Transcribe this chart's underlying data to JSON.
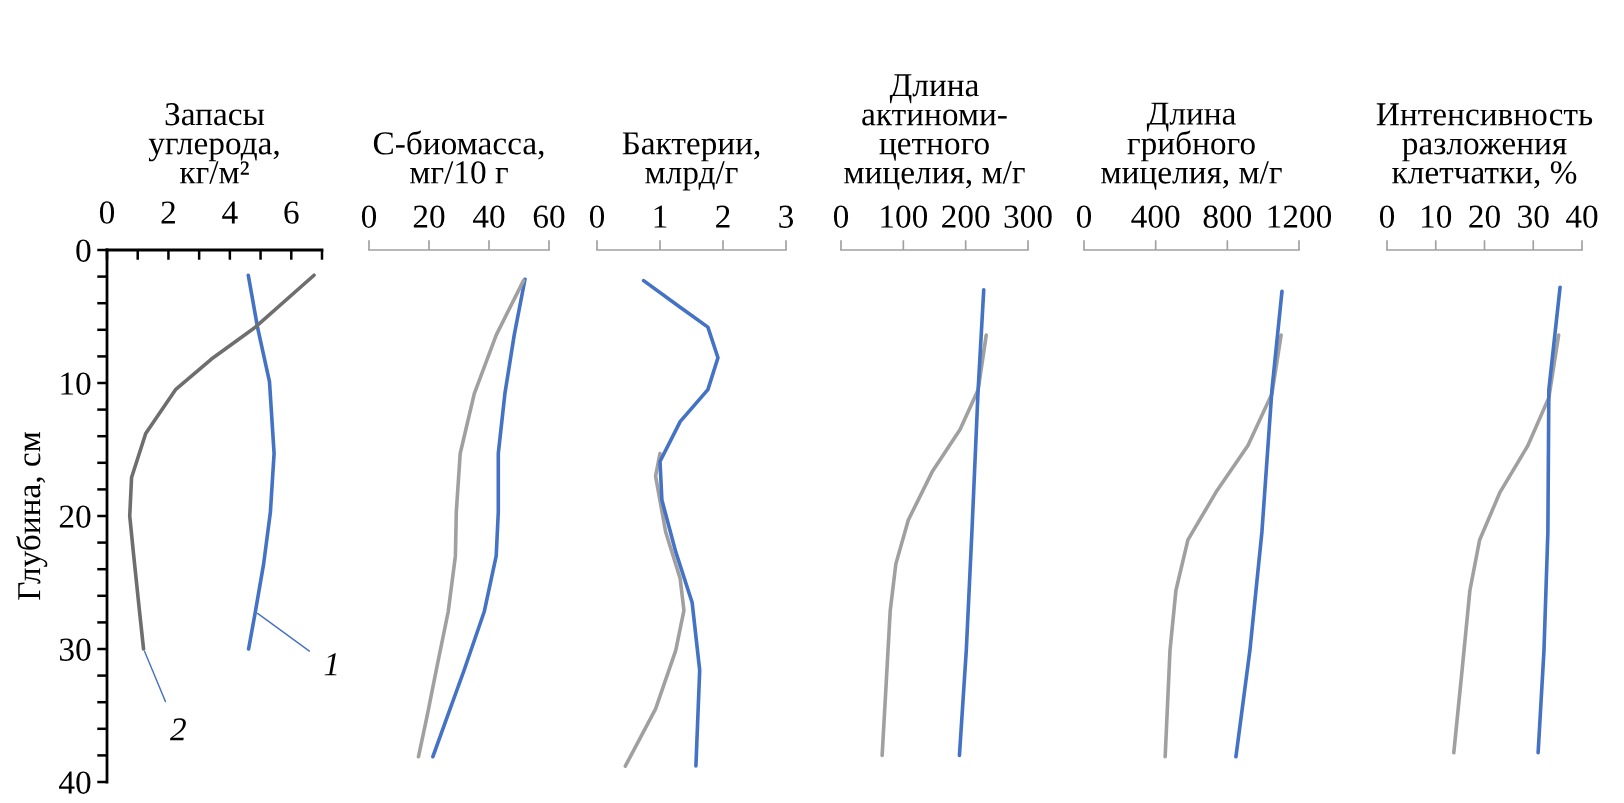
{
  "chart_data": [
    {
      "type": "line",
      "title": "Запасы\nуглерода,\nкг/м²",
      "ylabel": "Глубина, см",
      "xlim": [
        0,
        7
      ],
      "xticks": [
        0,
        {
          "value": 1,
          "label": null
        },
        2,
        {
          "value": 3,
          "label": null
        },
        4,
        {
          "value": 5,
          "label": null
        },
        6,
        {
          "value": 7,
          "label": null
        }
      ],
      "ylim": [
        40,
        0
      ],
      "yticks": [
        0,
        {
          "value": 2,
          "label": null
        },
        {
          "value": 4,
          "label": null
        },
        {
          "value": 6,
          "label": null
        },
        {
          "value": 8,
          "label": null
        },
        10,
        {
          "value": 12,
          "label": null
        },
        {
          "value": 14,
          "label": null
        },
        {
          "value": 16,
          "label": null
        },
        {
          "value": 18,
          "label": null
        },
        20,
        {
          "value": 22,
          "label": null
        },
        {
          "value": 24,
          "label": null
        },
        {
          "value": 26,
          "label": null
        },
        {
          "value": 28,
          "label": null
        },
        30,
        {
          "value": 32,
          "label": null
        },
        {
          "value": 34,
          "label": null
        },
        {
          "value": 36,
          "label": null
        },
        {
          "value": 38,
          "label": null
        },
        40
      ],
      "marker": "none",
      "line_style": "solid",
      "grid": false,
      "annotations": [
        {
          "text": "1",
          "x": 4.83,
          "y": 27.2
        },
        {
          "text": "2",
          "x": 1.19,
          "y": 30
        }
      ],
      "series": [
        {
          "color": "#4472c4",
          "x": [
            4.6,
            4.9,
            5.29,
            5.44,
            5.32,
            5.1,
            4.83,
            4.61
          ],
          "values": [
            1.9,
            5.8,
            9.9,
            15.3,
            19.7,
            23.6,
            27.2,
            30
          ]
        },
        {
          "color": "#6e6e6e",
          "x": [
            6.74,
            4.83,
            3.4,
            2.23,
            1.26,
            0.8,
            0.74,
            0.87,
            1.06,
            1.19
          ],
          "values": [
            1.9,
            5.8,
            8.2,
            10.5,
            13.8,
            17.1,
            20,
            23,
            27.2,
            30
          ]
        }
      ]
    },
    {
      "type": "line",
      "title": "C-биомасса,\nмг/10 г",
      "xlim": [
        0,
        60
      ],
      "xticks": [
        0,
        20,
        40,
        60
      ],
      "ylim": [
        40,
        0
      ],
      "tick_labels": "x",
      "marker": "none",
      "line_style": "solid",
      "grid": false,
      "series": [
        {
          "color": "#4472c4",
          "x": [
            52,
            48.4,
            45.3,
            43.1,
            43.1,
            42.4,
            38.4,
            31.7,
            26.4,
            21.3
          ],
          "values": [
            2.2,
            6.4,
            10.8,
            15.3,
            19.7,
            23,
            27.2,
            31.6,
            34.9,
            38.1
          ]
        },
        {
          "color": "#a0a0a0",
          "x": [
            51.5,
            42.4,
            35.1,
            30.4,
            29.1,
            28.8,
            26.4,
            22.4,
            19.5,
            16.5
          ],
          "values": [
            2.3,
            6.4,
            10.8,
            15.3,
            19.7,
            23,
            27.2,
            31.6,
            34.9,
            38.1
          ]
        }
      ]
    },
    {
      "type": "line",
      "title": "Бактерии,\nмлрд/г",
      "xlim": [
        0,
        3
      ],
      "xticks": [
        0,
        1,
        2,
        3
      ],
      "ylim": [
        40,
        0
      ],
      "tick_labels": "x",
      "marker": "none",
      "line_style": "solid",
      "grid": false,
      "series": [
        {
          "color": "#a0a0a0",
          "x": [
            1.0,
            0.93,
            1.09,
            1.32,
            1.38,
            1.25,
            0.93,
            0.45
          ],
          "values": [
            15.3,
            17,
            21.2,
            24.7,
            27.1,
            30.1,
            34.5,
            38.8
          ]
        },
        {
          "color": "#4472c4",
          "x": [
            0.74,
            1.32,
            1.76,
            1.92,
            1.76,
            1.32,
            1.0,
            1.03,
            1.25,
            1.51,
            1.63,
            1.57
          ],
          "values": [
            2.3,
            4.3,
            5.8,
            8.1,
            10.5,
            12.9,
            15.9,
            18.8,
            22.7,
            26.5,
            31.6,
            38.8
          ]
        }
      ]
    },
    {
      "type": "line",
      "title": "Длина\nактиноми-\nцетного\nмицелия, м/г",
      "xlim": [
        0,
        300
      ],
      "xticks": [
        0,
        100,
        200,
        300
      ],
      "ylim": [
        40,
        0
      ],
      "tick_labels": "x",
      "marker": "none",
      "line_style": "solid",
      "grid": false,
      "series": [
        {
          "color": "#a0a0a0",
          "x": [
            233,
            220,
            191,
            146,
            108,
            88,
            79,
            72,
            66
          ],
          "values": [
            6.4,
            10.5,
            13.5,
            16.7,
            20.3,
            23.6,
            27.1,
            33,
            38
          ]
        },
        {
          "color": "#4472c4",
          "x": [
            229,
            220,
            210,
            201,
            190
          ],
          "values": [
            3.0,
            10.5,
            21.2,
            30.1,
            38.0
          ]
        }
      ]
    },
    {
      "type": "line",
      "title": "Длина\nгрибного\nмицелия, м/г",
      "xlim": [
        0,
        1200
      ],
      "xticks": [
        0,
        400,
        800,
        1200
      ],
      "ylim": [
        40,
        0
      ],
      "tick_labels": "x",
      "marker": "none",
      "line_style": "solid",
      "grid": false,
      "series": [
        {
          "color": "#a0a0a0",
          "x": [
            1100,
            1049,
            915,
            737,
            580,
            513,
            480,
            453
          ],
          "values": [
            6.4,
            10.8,
            14.7,
            18.2,
            21.8,
            25.6,
            30.1,
            38.1
          ]
        },
        {
          "color": "#4472c4",
          "x": [
            1105,
            1049,
            993,
            926,
            848
          ],
          "values": [
            3.1,
            10.5,
            21.2,
            30.1,
            38.1
          ]
        }
      ]
    },
    {
      "type": "line",
      "title": "Интенсивность\nразложения\nклетчатки, %",
      "xlim": [
        0,
        40
      ],
      "xticks": [
        0,
        10,
        20,
        30,
        40
      ],
      "ylim": [
        40,
        0
      ],
      "tick_labels": "x",
      "marker": "none",
      "line_style": "solid",
      "grid": false,
      "series": [
        {
          "color": "#a0a0a0",
          "x": [
            35.2,
            33.2,
            28.9,
            23.2,
            19.0,
            17.0,
            15.4,
            13.7
          ],
          "values": [
            6.4,
            11.1,
            14.7,
            18.2,
            21.8,
            25.6,
            31.6,
            37.8
          ]
        },
        {
          "color": "#4472c4",
          "x": [
            35.5,
            33.2,
            33.0,
            32.2,
            31.0
          ],
          "values": [
            2.8,
            10.5,
            21.2,
            30.1,
            37.8
          ]
        }
      ]
    }
  ]
}
